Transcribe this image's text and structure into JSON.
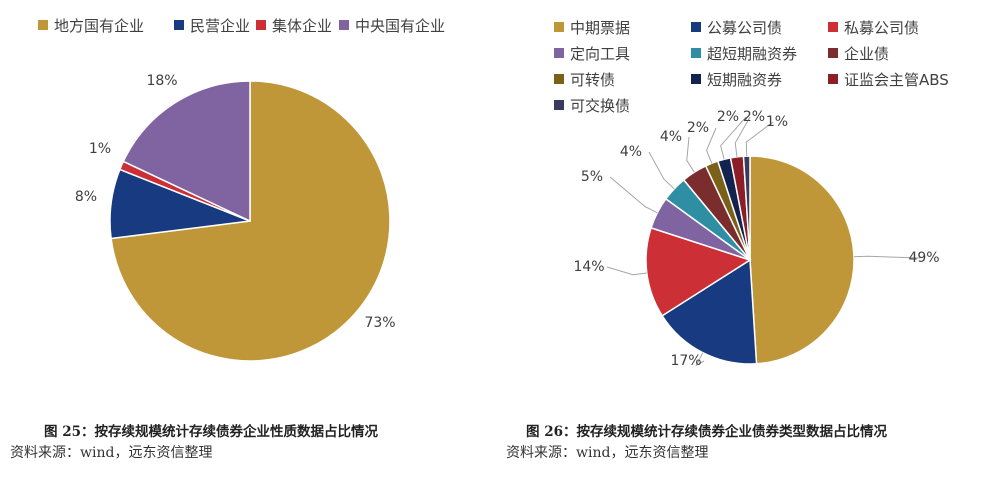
{
  "chart_data": [
    {
      "type": "pie",
      "title": "",
      "categories": [
        "地方国有企业",
        "民营企业",
        "集体企业",
        "中央国有企业"
      ],
      "values": [
        73,
        8,
        1,
        18
      ],
      "labels": [
        "73%",
        "8%",
        "1%",
        "18%"
      ],
      "colors": [
        "#bf9738",
        "#173a80",
        "#cc2f35",
        "#8064a2"
      ],
      "legend_position": "top",
      "caption": "图 25：按存续规模统计存续债券企业性质数据占比情况",
      "source": "资料来源：wind，远东资信整理"
    },
    {
      "type": "pie",
      "title": "",
      "categories": [
        "中期票据",
        "公募公司债",
        "私募公司债",
        "定向工具",
        "超短期融资券",
        "企业债",
        "可转债",
        "短期融资券",
        "证监会主管ABS",
        "可交换债"
      ],
      "values": [
        49,
        17,
        14,
        5,
        4,
        4,
        2,
        2,
        2,
        1
      ],
      "labels": [
        "49%",
        "17%",
        "14%",
        "5%",
        "4%",
        "4%",
        "2%",
        "2%",
        "2%",
        "1%"
      ],
      "colors": [
        "#bf9738",
        "#173a80",
        "#cc2f35",
        "#8064a2",
        "#2e8ea4",
        "#7b2d2d",
        "#7a6018",
        "#13234f",
        "#8b1e27",
        "#3a3a5e"
      ],
      "legend_position": "top",
      "caption": "图 26：按存续规模统计存续债券企业债券类型数据占比情况",
      "source": "资料来源：wind，远东资信整理"
    }
  ]
}
